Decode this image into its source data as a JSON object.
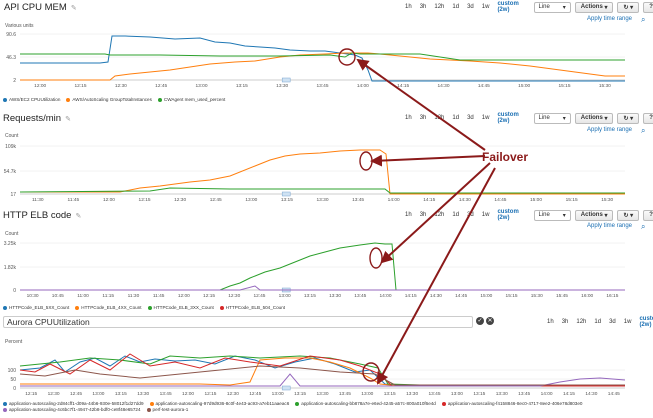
{
  "toolbar": {
    "ranges": [
      "1h",
      "3h",
      "12h",
      "1d",
      "3d",
      "1w"
    ],
    "custom": "custom (2w)",
    "type": "Line",
    "actions": "Actions",
    "refresh": "↻",
    "help": "?",
    "apply": "Apply time range"
  },
  "annotation": {
    "label": "Failover",
    "color": "#8b1a1a"
  },
  "panels": [
    {
      "title": "API CPU MEM",
      "units_label": "Various units",
      "yticks": [
        "90.6",
        "46.3",
        "2"
      ],
      "xticks": [
        "12:00",
        "12:15",
        "12:30",
        "12:45",
        "13:00",
        "13:15",
        "13:30",
        "13:45",
        "14:00",
        "14:15",
        "14:30",
        "14:45",
        "15:00",
        "15:15",
        "15:30"
      ],
      "legend": [
        {
          "label": "AWS/EC2 CPUUtilization",
          "color": "#1f77b4"
        },
        {
          "label": "AWS/AutoScaling GroupTotalInstances",
          "color": "#ff7f0e"
        },
        {
          "label": "CWAgent mem_used_percent",
          "color": "#2ca02c"
        }
      ]
    },
    {
      "title": "Requests/min",
      "units_label": "Count",
      "yticks": [
        "109k",
        "54.7k",
        "17"
      ],
      "xticks": [
        "11:30",
        "11:45",
        "12:00",
        "12:15",
        "12:30",
        "12:45",
        "13:00",
        "13:15",
        "13:30",
        "13:45",
        "14:00",
        "14:15",
        "14:30",
        "14:45",
        "15:00",
        "15:15",
        "15:30"
      ],
      "legend": []
    },
    {
      "title": "HTTP ELB code",
      "units_label": "Count",
      "yticks": [
        "3.25k",
        "1.82k",
        "0"
      ],
      "xticks": [
        "10:30",
        "10:45",
        "11:00",
        "11:15",
        "11:30",
        "11:45",
        "12:00",
        "12:15",
        "12:30",
        "12:45",
        "13:00",
        "13:15",
        "13:30",
        "13:45",
        "14:00",
        "14:15",
        "14:30",
        "14:45",
        "15:00",
        "15:15",
        "15:30",
        "15:45",
        "16:00",
        "16:15"
      ],
      "legend": [
        {
          "label": "HTTPCode_ELB_5XX_Count",
          "color": "#1f77b4"
        },
        {
          "label": "HTTPCode_ELB_4XX_Count",
          "color": "#ff7f0e"
        },
        {
          "label": "HTTPCode_ELB_3XX_Count",
          "color": "#2ca02c"
        },
        {
          "label": "HTTPCode_ELB_504_Count",
          "color": "#d62728"
        }
      ]
    },
    {
      "title": "Aurora CPUUtilization",
      "units_label": "Percent",
      "yticks": [
        "100",
        "50",
        "0"
      ],
      "xticks": [
        "12:15",
        "12:30",
        "12:45",
        "13:00",
        "13:15",
        "13:30",
        "13:45",
        "12:00",
        "12:15",
        "12:30",
        "12:45",
        "13:00",
        "13:15",
        "13:30",
        "13:45",
        "13:00",
        "13:15",
        "13:30",
        "13:45",
        "13:00",
        "13:15",
        "13:30",
        "13:45",
        "14:00",
        "14:15",
        "14:30",
        "14:45"
      ],
      "legend": [
        {
          "label": "application-autoscaling-2d84cff1-d09a-44b6-930e-58012f1d27dd9",
          "color": "#1f77b4"
        },
        {
          "label": "application-autoscaling-97d9d936-8c0f-4e43-ac93-a7eb11aaeac6",
          "color": "#ff7f0e"
        },
        {
          "label": "application-autoscaling-bb878a7e-e6ed-4245-a57c-800a010f6e4d",
          "color": "#2ca02c"
        },
        {
          "label": "application-autoscaling-f4158846-8ec0-4717-8ee2-406e78d803e0",
          "color": "#d62728"
        },
        {
          "label": "application-autoscaling-4c6bc7f1-4947-42b8-bdf0-ce8f48e65724",
          "color": "#9467bd"
        },
        {
          "label": "perf-test-aurora-1",
          "color": "#8c564b"
        }
      ]
    }
  ]
}
